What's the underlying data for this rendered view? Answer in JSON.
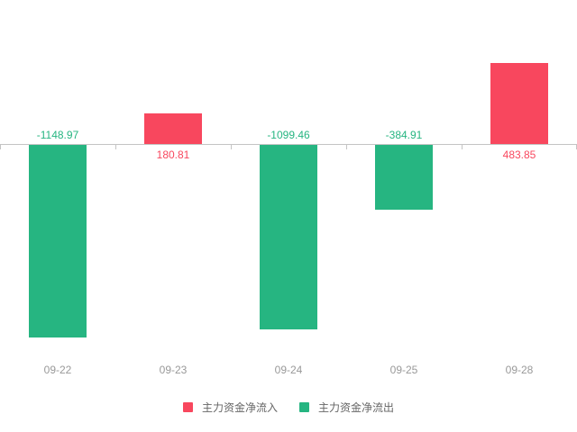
{
  "chart_data": {
    "type": "bar",
    "categories": [
      "09-22",
      "09-23",
      "09-24",
      "09-25",
      "09-28"
    ],
    "values": [
      -1148.97,
      180.81,
      -1099.46,
      -384.91,
      483.85
    ],
    "labels": [
      "-1148.97",
      "180.81",
      "-1099.46",
      "-384.91",
      "483.85"
    ],
    "series": [
      {
        "name": "主力资金净流入",
        "color": "#f8475e",
        "values": [
          null,
          180.81,
          null,
          null,
          483.85
        ]
      },
      {
        "name": "主力资金净流出",
        "color": "#26b581",
        "values": [
          -1148.97,
          null,
          -1099.46,
          -384.91,
          null
        ]
      }
    ],
    "title": "",
    "xlabel": "",
    "ylabel": "",
    "ylim": [
      -1250,
      550
    ],
    "grid": false,
    "legend_position": "bottom"
  },
  "legend": {
    "items": [
      {
        "label": "主力资金净流入",
        "color": "#f8475e"
      },
      {
        "label": "主力资金净流出",
        "color": "#26b581"
      }
    ]
  },
  "colors": {
    "inflow": "#f8475e",
    "outflow": "#26b581",
    "axis_line": "#c4c4c4",
    "tick": "#c4c4c4",
    "date_label": "#999999",
    "legend_text": "#666666",
    "background": "#ffffff"
  }
}
